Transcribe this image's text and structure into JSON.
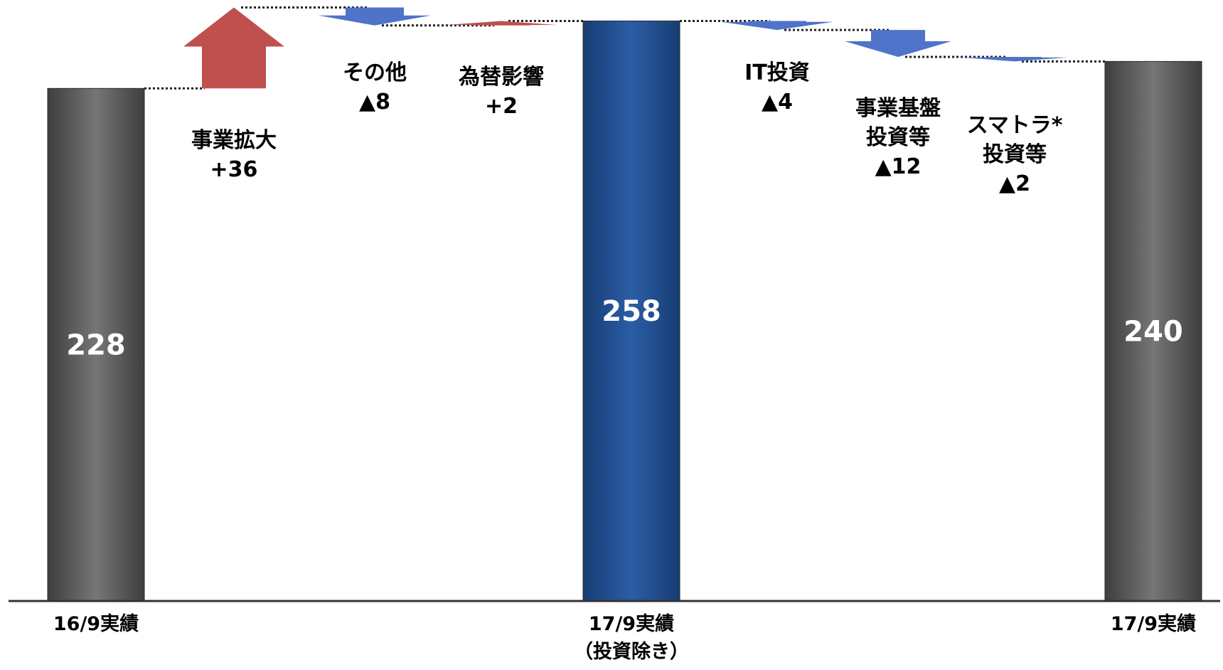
{
  "chart_data": {
    "type": "bar",
    "subtype": "waterfall",
    "ylim": [
      0,
      265
    ],
    "grid": false,
    "legend": "none",
    "bars": [
      {
        "category": "16/9実績",
        "category_line2": "",
        "value": 228,
        "value_label": "228",
        "color": "#5a5a5a"
      },
      {
        "category": "17/9実績",
        "category_line2": "（投資除き）",
        "value": 258,
        "value_label": "258",
        "color": "#1f4e8c"
      },
      {
        "category": "17/9実績",
        "category_line2": "",
        "value": 240,
        "value_label": "240",
        "color": "#5a5a5a"
      }
    ],
    "steps": [
      {
        "label": [
          "事業拡大",
          "+36"
        ],
        "delta": 36,
        "direction": "up",
        "color": "#c0504d"
      },
      {
        "label": [
          "その他",
          "▲8"
        ],
        "delta": -8,
        "direction": "down",
        "color": "#4f73c8"
      },
      {
        "label": [
          "為替影響",
          "+2"
        ],
        "delta": 2,
        "direction": "up",
        "color": "#c0504d"
      },
      {
        "label": [
          "IT投資",
          "▲4"
        ],
        "delta": -4,
        "direction": "down",
        "color": "#4f73c8"
      },
      {
        "label": [
          "事業基盤",
          "投資等",
          "▲12"
        ],
        "delta": -12,
        "direction": "down",
        "color": "#4f73c8"
      },
      {
        "label": [
          "スマトラ*",
          "投資等",
          "▲2"
        ],
        "delta": -2,
        "direction": "down",
        "color": "#4f73c8"
      }
    ]
  }
}
